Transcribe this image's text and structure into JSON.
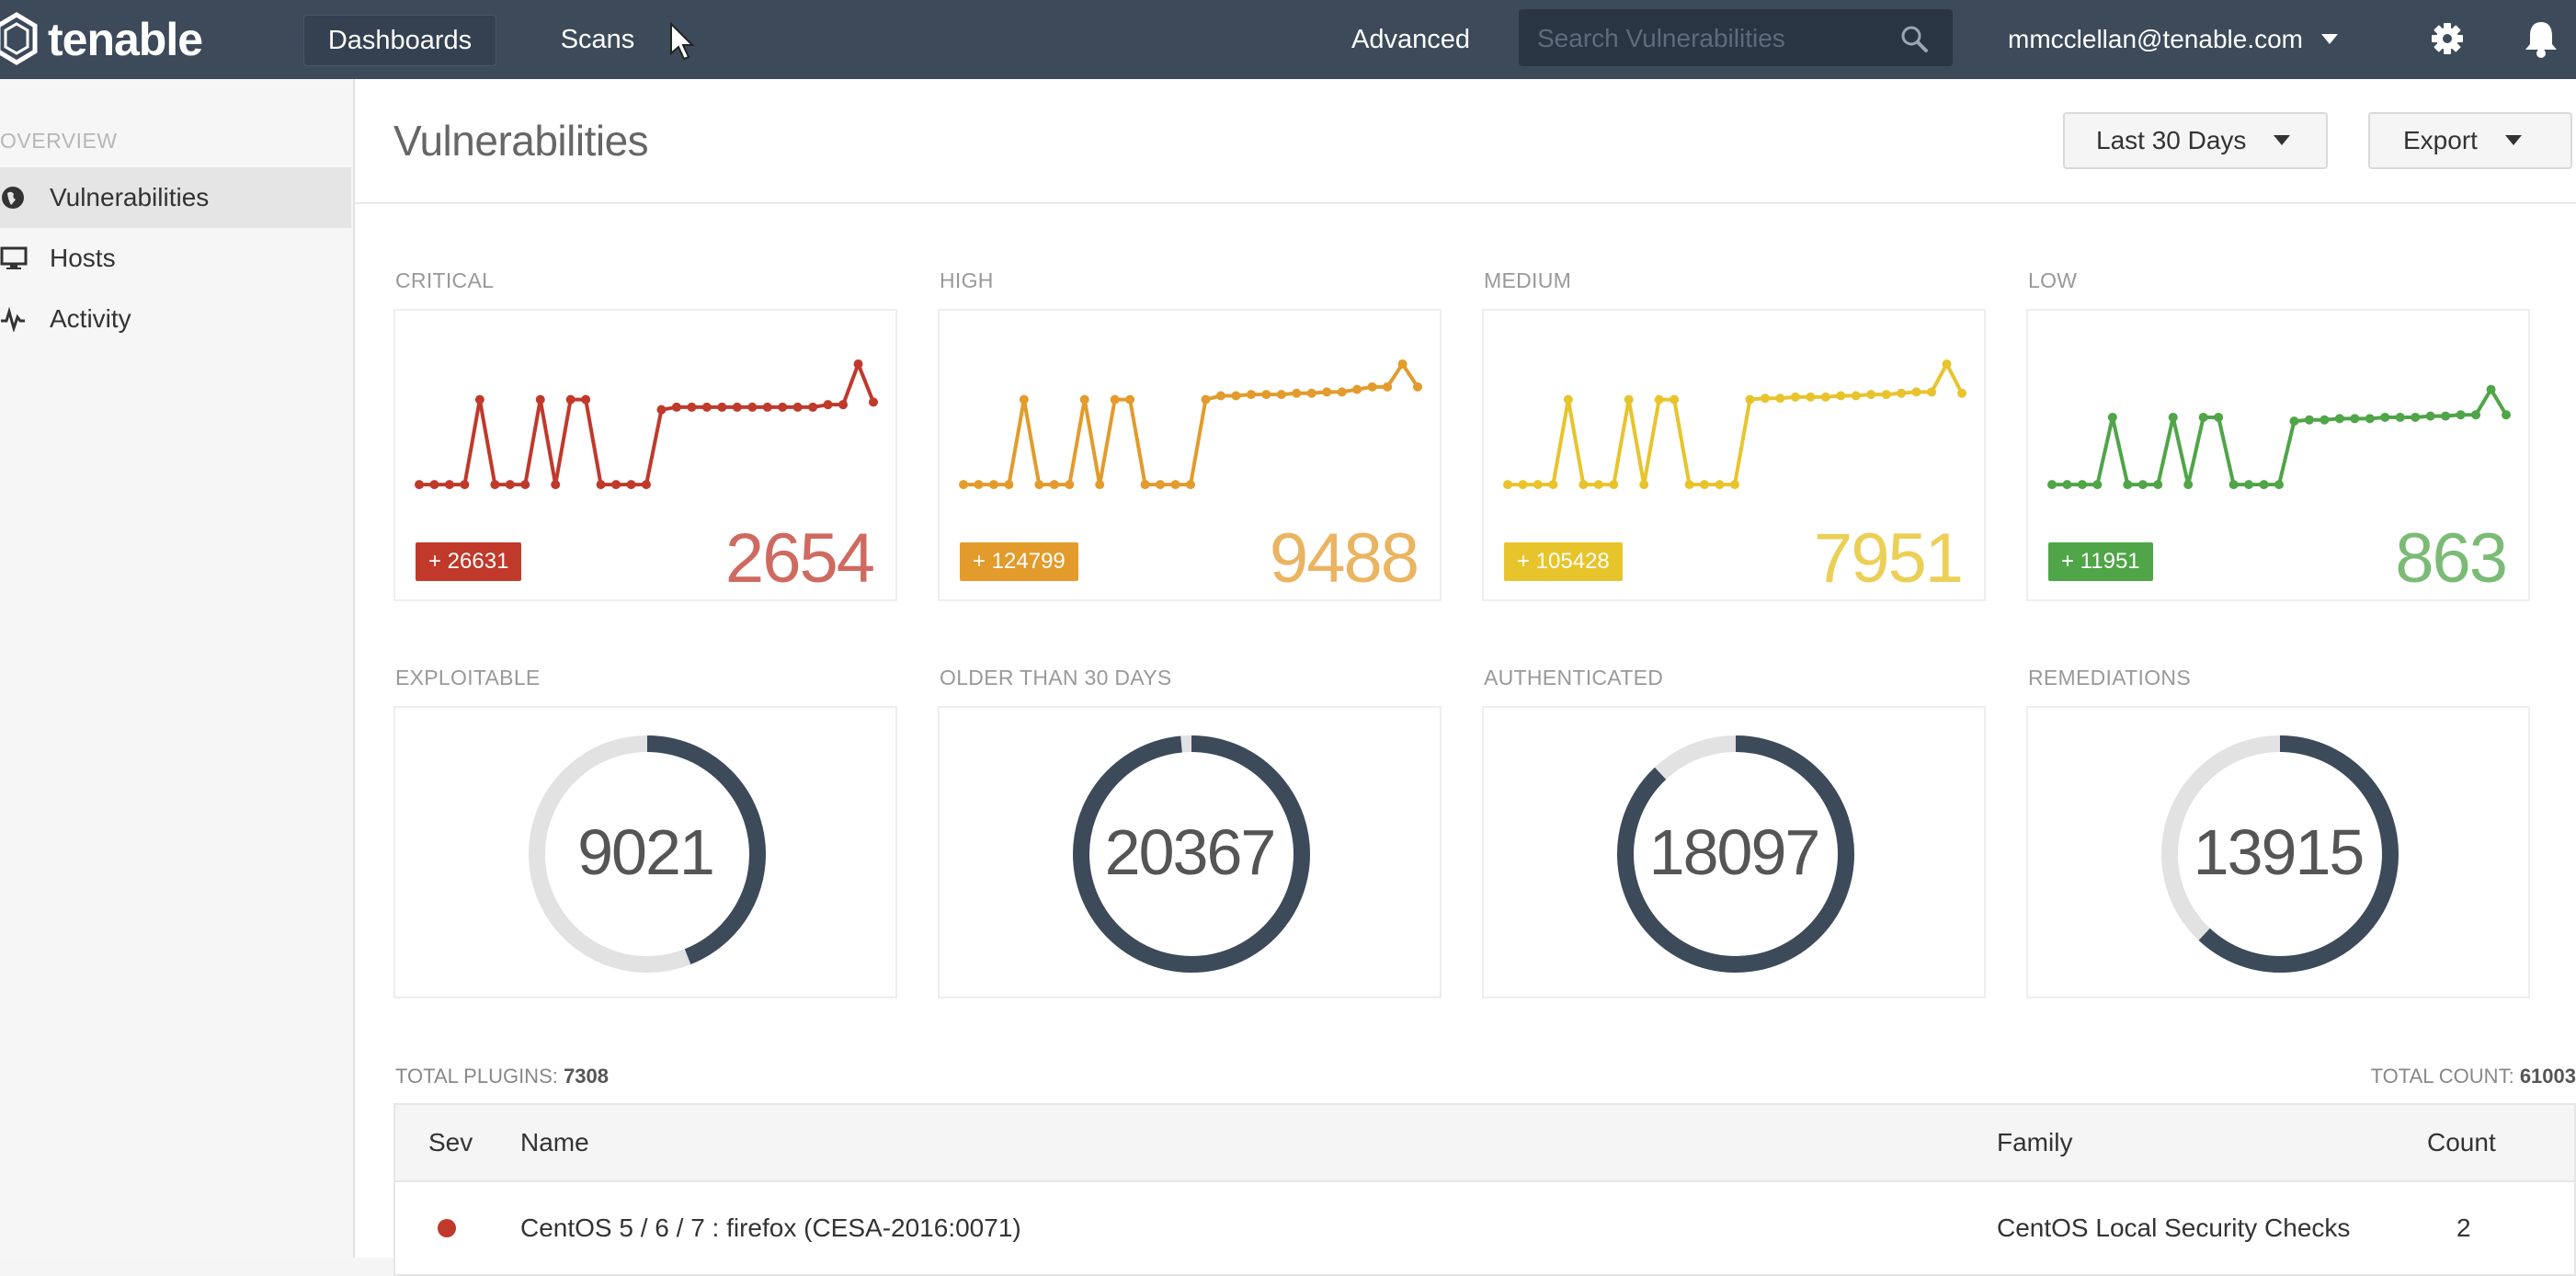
{
  "brand": {
    "name": "tenable"
  },
  "topbar": {
    "nav": [
      {
        "label": "Dashboards"
      },
      {
        "label": "Scans"
      }
    ],
    "advanced_label": "Advanced",
    "search_placeholder": "Search Vulnerabilities",
    "user_email": "mmcclellan@tenable.com"
  },
  "sidebar": {
    "section": "OVERVIEW",
    "items": [
      {
        "label": "Vulnerabilities",
        "icon": "globe-icon",
        "active": true
      },
      {
        "label": "Hosts",
        "icon": "monitor-icon",
        "active": false
      },
      {
        "label": "Activity",
        "icon": "activity-icon",
        "active": false
      }
    ]
  },
  "main": {
    "title": "Vulnerabilities",
    "range_label": "Last 30 Days",
    "export_label": "Export"
  },
  "severity_cards": [
    {
      "label": "CRITICAL",
      "delta": "+ 26631",
      "count": "2654",
      "color": "#c0392b",
      "trend": [
        0.05,
        0.05,
        0.05,
        0.05,
        0.72,
        0.05,
        0.05,
        0.05,
        0.72,
        0.05,
        0.72,
        0.72,
        0.05,
        0.05,
        0.05,
        0.05,
        0.64,
        0.66,
        0.66,
        0.66,
        0.66,
        0.66,
        0.66,
        0.66,
        0.66,
        0.66,
        0.66,
        0.68,
        0.68,
        1.0,
        0.7
      ]
    },
    {
      "label": "HIGH",
      "delta": "+ 124799",
      "count": "9488",
      "color": "#e39b2c",
      "trend": [
        0.05,
        0.05,
        0.05,
        0.05,
        0.72,
        0.05,
        0.05,
        0.05,
        0.72,
        0.05,
        0.72,
        0.72,
        0.05,
        0.05,
        0.05,
        0.05,
        0.72,
        0.75,
        0.75,
        0.76,
        0.76,
        0.76,
        0.77,
        0.77,
        0.78,
        0.78,
        0.8,
        0.82,
        0.82,
        1.0,
        0.82
      ]
    },
    {
      "label": "MEDIUM",
      "delta": "+ 105428",
      "count": "7951",
      "color": "#e8c42c",
      "trend": [
        0.05,
        0.05,
        0.05,
        0.05,
        0.72,
        0.05,
        0.05,
        0.05,
        0.72,
        0.05,
        0.72,
        0.72,
        0.05,
        0.05,
        0.05,
        0.05,
        0.72,
        0.73,
        0.73,
        0.74,
        0.74,
        0.74,
        0.75,
        0.75,
        0.76,
        0.76,
        0.77,
        0.78,
        0.78,
        1.0,
        0.77
      ]
    },
    {
      "label": "LOW",
      "delta": "+ 11951",
      "count": "863",
      "color": "#4fa547",
      "trend": [
        0.05,
        0.05,
        0.05,
        0.05,
        0.58,
        0.05,
        0.05,
        0.05,
        0.58,
        0.05,
        0.58,
        0.58,
        0.05,
        0.05,
        0.05,
        0.05,
        0.55,
        0.56,
        0.56,
        0.57,
        0.57,
        0.57,
        0.58,
        0.58,
        0.58,
        0.59,
        0.59,
        0.6,
        0.6,
        0.8,
        0.6
      ]
    }
  ],
  "donut_cards": [
    {
      "label": "EXPLOITABLE",
      "value": "9021",
      "fraction": 0.44
    },
    {
      "label": "OLDER THAN 30 DAYS",
      "value": "20367",
      "fraction": 0.985
    },
    {
      "label": "AUTHENTICATED",
      "value": "18097",
      "fraction": 0.88
    },
    {
      "label": "REMEDIATIONS",
      "value": "13915",
      "fraction": 0.62
    }
  ],
  "totals": {
    "plugins_label": "TOTAL PLUGINS:",
    "plugins_value": "7308",
    "count_label": "TOTAL COUNT:",
    "count_value": "61003"
  },
  "table": {
    "headers": {
      "sev": "Sev",
      "name": "Name",
      "family": "Family",
      "count": "Count"
    },
    "rows": [
      {
        "name": "CentOS 5 / 6 / 7 : firefox (CESA-2016:0071)",
        "family": "CentOS Local Security Checks",
        "count": "2",
        "sev_color": "#c0392b"
      }
    ]
  },
  "colors": {
    "topbar": "#3c4a5a",
    "donut_fill": "#3c4a5a",
    "donut_track": "#e2e2e2"
  }
}
